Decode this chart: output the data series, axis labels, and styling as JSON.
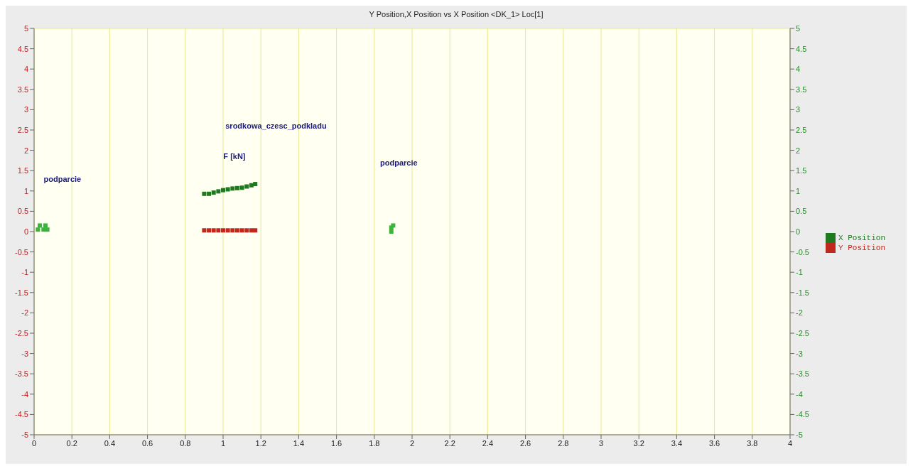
{
  "chart_data": {
    "type": "scatter",
    "title": "Y Position,X Position vs X Position <DK_1> Loc[1]",
    "series": [
      {
        "name": "X Position",
        "color": "#1f7a1f",
        "x": [
          0.9,
          0.925,
          0.95,
          0.975,
          1.0,
          1.025,
          1.05,
          1.075,
          1.1,
          1.125,
          1.15,
          1.17
        ],
        "values": [
          0.93,
          0.93,
          0.96,
          0.99,
          1.02,
          1.04,
          1.06,
          1.07,
          1.08,
          1.11,
          1.14,
          1.17
        ]
      },
      {
        "name": "Y Position",
        "color": "#c0281e",
        "x": [
          0.9,
          0.925,
          0.95,
          0.975,
          1.0,
          1.025,
          1.05,
          1.075,
          1.1,
          1.125,
          1.15,
          1.17
        ],
        "values": [
          0.03,
          0.03,
          0.03,
          0.03,
          0.03,
          0.03,
          0.03,
          0.03,
          0.03,
          0.03,
          0.03,
          0.03
        ]
      },
      {
        "color": "#3cb43c",
        "x": [
          0.02,
          0.03,
          0.05,
          0.06,
          0.07,
          1.89,
          1.89,
          1.9
        ],
        "values": [
          0.05,
          0.15,
          0.05,
          0.15,
          0.05,
          0.0,
          0.1,
          0.15
        ]
      }
    ],
    "xlim": [
      0,
      4
    ],
    "xticks": [
      0,
      0.2,
      0.4,
      0.6,
      0.8,
      1,
      1.2,
      1.4,
      1.6,
      1.8,
      2,
      2.2,
      2.4,
      2.6,
      2.8,
      3,
      3.2,
      3.4,
      3.6,
      3.8,
      4
    ],
    "ylim": [
      -5,
      5
    ],
    "yticks": [
      -5,
      -4.5,
      -4,
      -3.5,
      -3,
      -2.5,
      -2,
      -1.5,
      -1,
      -0.5,
      0,
      0.5,
      1,
      1.5,
      2,
      2.5,
      3,
      3.5,
      4,
      4.5,
      5
    ],
    "y2lim": [
      -5,
      5
    ],
    "y2ticks": [
      -5,
      -4.5,
      -4,
      -3.5,
      -3,
      -2.5,
      -2,
      -1.5,
      -1,
      -0.5,
      0,
      0.5,
      1,
      1.5,
      2,
      2.5,
      3,
      3.5,
      4,
      4.5,
      5
    ],
    "annotations": [
      "srodkowa_czesc_podkladu",
      "F [kN]",
      "podparcie",
      "podparcie"
    ],
    "grid": true,
    "legend": "right",
    "marker": "square"
  }
}
